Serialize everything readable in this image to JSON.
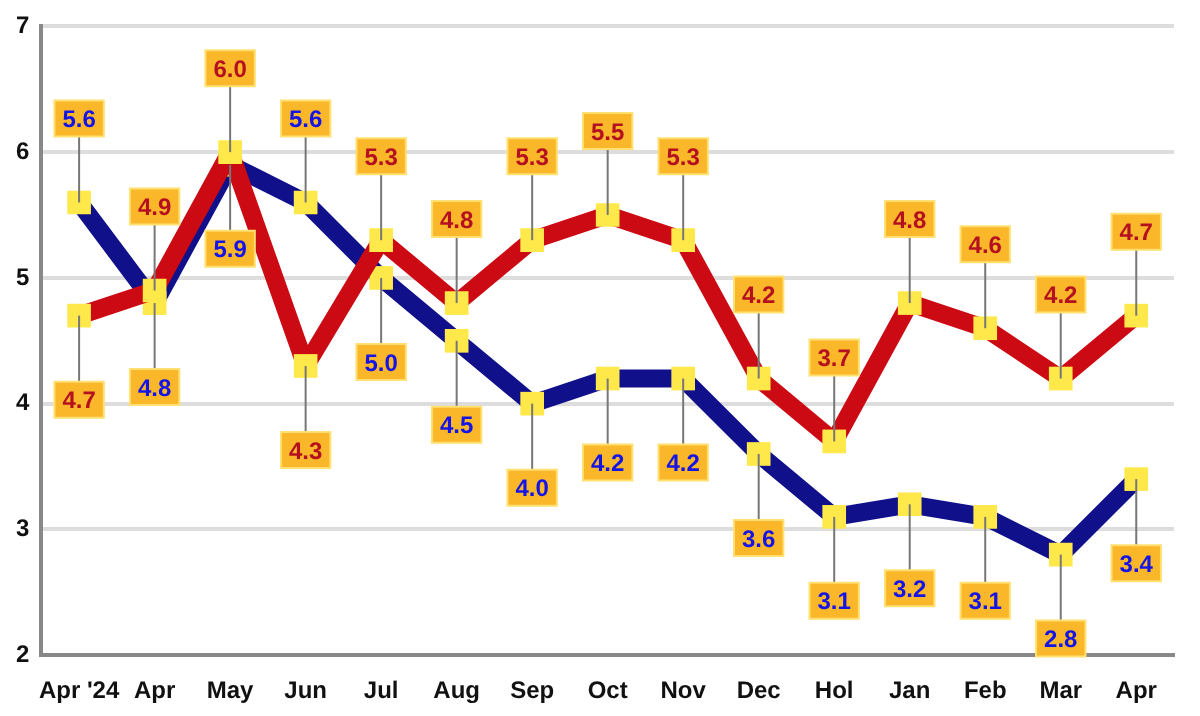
{
  "chart_data": {
    "type": "line",
    "categories": [
      "Apr '24",
      "Apr",
      "May",
      "Jun",
      "Jul",
      "Aug",
      "Sep",
      "Oct",
      "Nov",
      "Dec",
      "Hol",
      "Jan",
      "Feb",
      "Mar",
      "Apr"
    ],
    "series": [
      {
        "color": "#cc0a14",
        "values": [
          4.7,
          4.9,
          6.0,
          4.3,
          5.3,
          4.8,
          5.3,
          5.5,
          5.3,
          4.2,
          3.7,
          4.8,
          4.6,
          4.2,
          4.7
        ],
        "value_labels": [
          "4.7",
          "4.9",
          "6.0",
          "4.3",
          "5.3",
          "4.8",
          "5.3",
          "5.5",
          "5.3",
          "4.2",
          "3.7",
          "4.8",
          "4.6",
          "4.2",
          "4.7"
        ]
      },
      {
        "color": "#10108a",
        "values": [
          5.6,
          4.8,
          5.9,
          5.6,
          5.0,
          4.5,
          4.0,
          4.2,
          4.2,
          3.6,
          3.1,
          3.2,
          3.1,
          2.8,
          3.4
        ],
        "value_labels": [
          "5.6",
          "4.8",
          "5.9",
          "5.6",
          "5.0",
          "4.5",
          "4.0",
          "4.2",
          "4.2",
          "3.6",
          "3.1",
          "3.2",
          "3.1",
          "2.8",
          "3.4"
        ]
      }
    ],
    "ylim": [
      2,
      7
    ],
    "yticks": [
      2,
      3,
      4,
      5,
      6,
      7
    ],
    "grid": "y",
    "marker": "square",
    "line_style": "solid",
    "legend": false
  }
}
